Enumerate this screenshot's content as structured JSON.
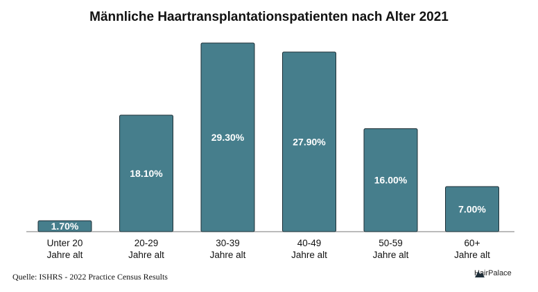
{
  "chart_data": {
    "type": "bar",
    "title": "Männliche Haartransplantationspatienten nach Alter 2021",
    "categories": [
      [
        "Unter 20",
        "Jahre alt"
      ],
      [
        "20-29",
        "Jahre alt"
      ],
      [
        "30-39",
        "Jahre alt"
      ],
      [
        "40-49",
        "Jahre alt"
      ],
      [
        "50-59",
        "Jahre alt"
      ],
      [
        "60+",
        "Jahre alt"
      ]
    ],
    "values": [
      1.7,
      18.1,
      29.3,
      27.9,
      16.0,
      7.0
    ],
    "value_labels": [
      "1.70%",
      "18.10%",
      "29.30%",
      "27.90%",
      "16.00%",
      "7.00%"
    ],
    "ylim": [
      0,
      29.3
    ],
    "grid": false,
    "bar_color": "#467e8c"
  },
  "source": "Quelle: ISHRS - 2022 Practice Census Results",
  "logo_text": "HairPalace"
}
